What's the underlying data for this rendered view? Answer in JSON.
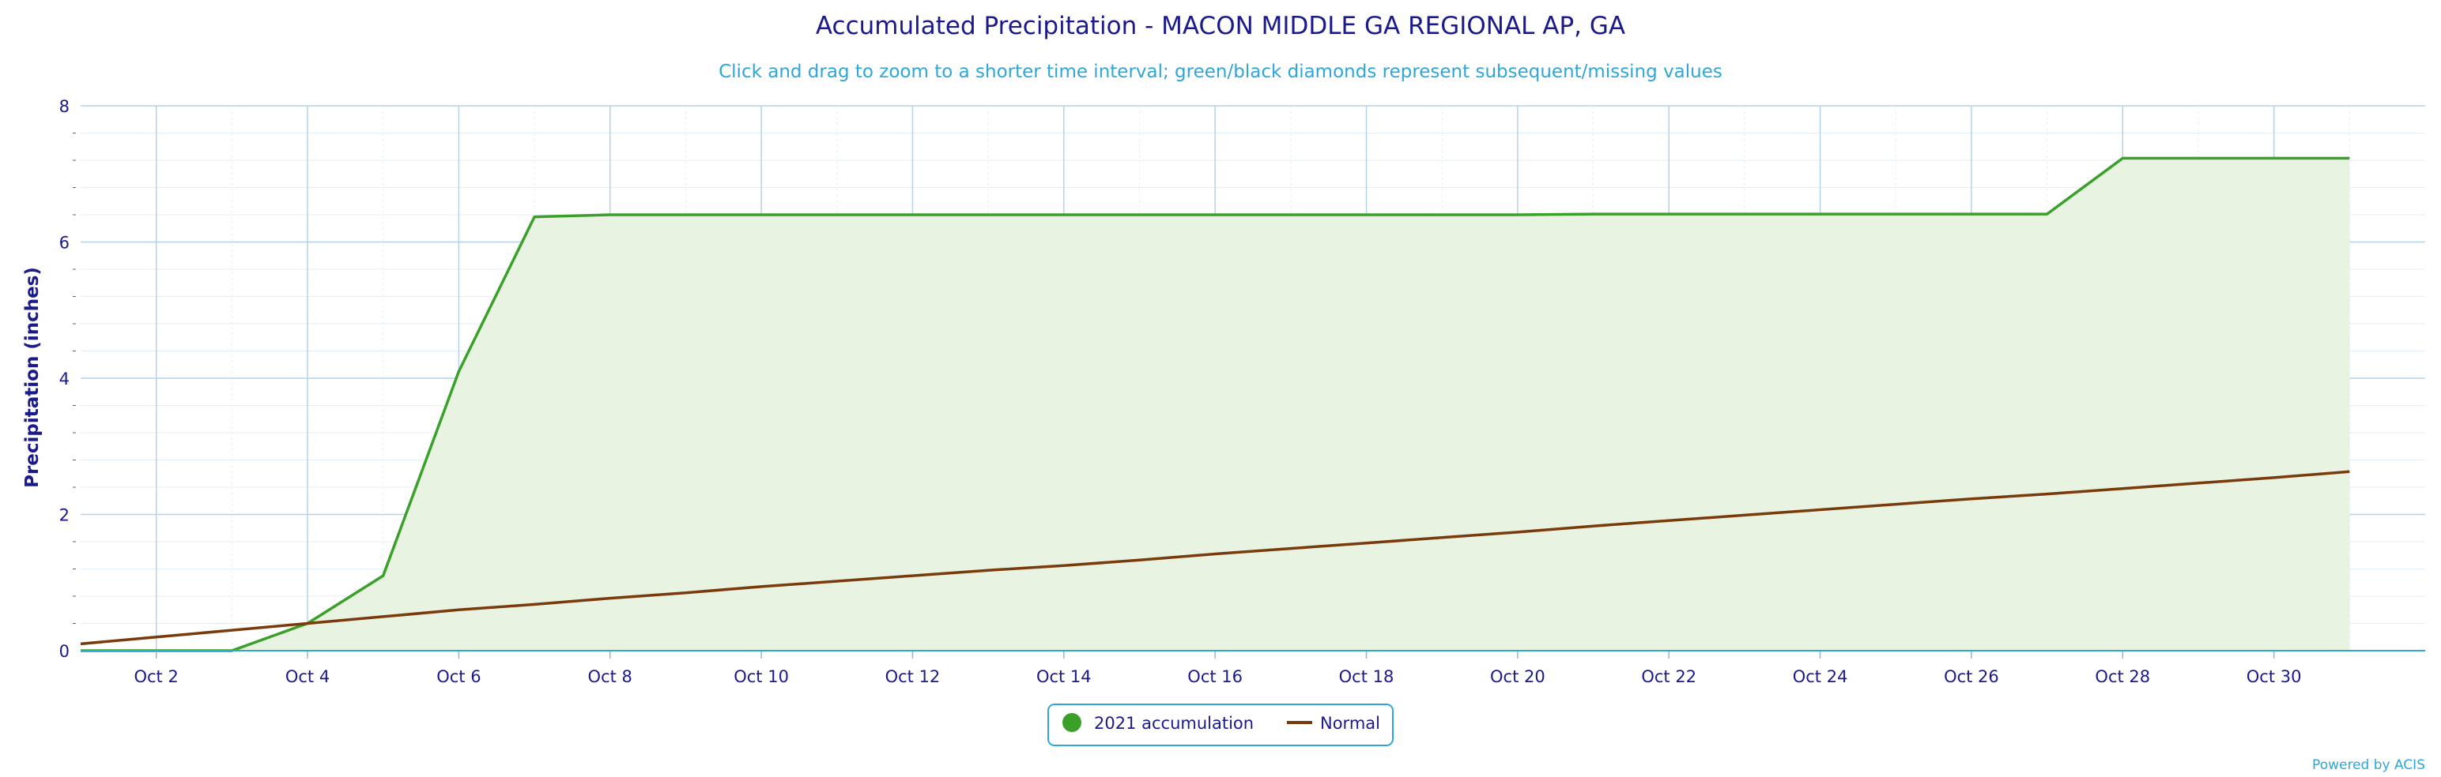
{
  "chart_data": {
    "type": "area",
    "title": "Accumulated Precipitation - MACON MIDDLE GA REGIONAL AP, GA",
    "subtitle": "Click and drag to zoom to a shorter time interval; green/black diamonds represent subsequent/missing values",
    "ylabel": "Precipitation (inches)",
    "xlabel": "",
    "ylim": [
      0,
      8
    ],
    "yticks": [
      0,
      2,
      4,
      6,
      8
    ],
    "xlim": [
      1,
      32
    ],
    "xticks": [
      {
        "day": 2,
        "label": "Oct 2"
      },
      {
        "day": 4,
        "label": "Oct 4"
      },
      {
        "day": 6,
        "label": "Oct 6"
      },
      {
        "day": 8,
        "label": "Oct 8"
      },
      {
        "day": 10,
        "label": "Oct 10"
      },
      {
        "day": 12,
        "label": "Oct 12"
      },
      {
        "day": 14,
        "label": "Oct 14"
      },
      {
        "day": 16,
        "label": "Oct 16"
      },
      {
        "day": 18,
        "label": "Oct 18"
      },
      {
        "day": 20,
        "label": "Oct 20"
      },
      {
        "day": 22,
        "label": "Oct 22"
      },
      {
        "day": 24,
        "label": "Oct 24"
      },
      {
        "day": 26,
        "label": "Oct 26"
      },
      {
        "day": 28,
        "label": "Oct 28"
      },
      {
        "day": 30,
        "label": "Oct 30"
      }
    ],
    "grid": true,
    "legend_position": "bottom-center",
    "x": [
      1,
      2,
      3,
      4,
      5,
      6,
      7,
      8,
      9,
      10,
      11,
      12,
      13,
      14,
      15,
      16,
      17,
      18,
      19,
      20,
      21,
      22,
      23,
      24,
      25,
      26,
      27,
      28,
      29,
      30,
      31
    ],
    "series": [
      {
        "name": "2021 accumulation",
        "style": "filled-area",
        "color": "#3aa02a",
        "fill": "#e8f3e2",
        "values": [
          0,
          0,
          0,
          0.4,
          1.1,
          4.1,
          6.37,
          6.4,
          6.4,
          6.4,
          6.4,
          6.4,
          6.4,
          6.4,
          6.4,
          6.4,
          6.4,
          6.4,
          6.4,
          6.4,
          6.41,
          6.41,
          6.41,
          6.41,
          6.41,
          6.41,
          6.41,
          7.23,
          7.23,
          7.23,
          7.23
        ]
      },
      {
        "name": "Normal",
        "style": "line",
        "color": "#7a3a0c",
        "values": [
          0.1,
          0.2,
          0.3,
          0.4,
          0.5,
          0.6,
          0.68,
          0.77,
          0.85,
          0.94,
          1.02,
          1.1,
          1.18,
          1.25,
          1.33,
          1.42,
          1.5,
          1.58,
          1.66,
          1.74,
          1.83,
          1.91,
          1.99,
          2.07,
          2.15,
          2.23,
          2.3,
          2.38,
          2.46,
          2.54,
          2.63
        ]
      }
    ]
  },
  "credit": "Powered by ACIS",
  "colors": {
    "grid": "#b3d4e8",
    "axis_text": "#1a1a8c",
    "subtitle": "#2ea6d8"
  }
}
